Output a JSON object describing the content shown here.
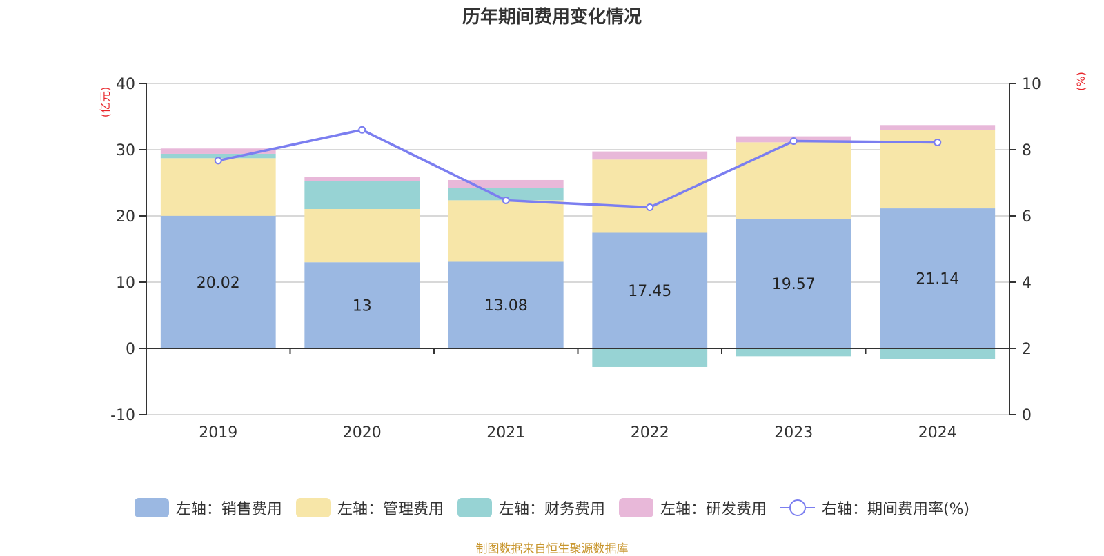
{
  "title": "历年期间费用变化情况",
  "source": "制图数据来自恒生聚源数据库",
  "chart_data": {
    "type": "bar",
    "stacked": true,
    "title": "历年期间费用变化情况",
    "categories": [
      "2019",
      "2020",
      "2021",
      "2022",
      "2023",
      "2024"
    ],
    "left_axis": {
      "label": "(亿元)",
      "ylim": [
        -10,
        40
      ],
      "ticks": [
        40,
        30,
        20,
        10,
        0,
        -10
      ]
    },
    "right_axis": {
      "label": "(%)",
      "ylim": [
        0,
        10
      ],
      "ticks": [
        10,
        8,
        6,
        4,
        2,
        0
      ]
    },
    "series": [
      {
        "name": "左轴：销售费用",
        "color": "#9bb8e2",
        "axis": "left",
        "values": [
          20.02,
          13.0,
          13.08,
          17.45,
          19.57,
          21.14
        ],
        "labels": [
          "20.02",
          "13",
          "13.08",
          "17.45",
          "19.57",
          "21.14"
        ]
      },
      {
        "name": "左轴：管理费用",
        "color": "#f7e6a8",
        "axis": "left",
        "values": [
          8.7,
          8.04,
          9.28,
          11.06,
          11.54,
          11.88
        ]
      },
      {
        "name": "左轴：财务费用",
        "color": "#97d3d4",
        "axis": "left",
        "values": [
          0.66,
          4.27,
          1.81,
          -2.81,
          -1.18,
          -1.59
        ]
      },
      {
        "name": "左轴：研发费用",
        "color": "#e8b8d9",
        "axis": "left",
        "values": [
          0.8,
          0.59,
          1.25,
          1.22,
          0.91,
          0.7
        ]
      },
      {
        "name": "右轴：期间费用率(%)",
        "color": "#7b7ef0",
        "axis": "right",
        "type": "line",
        "values": [
          7.67,
          8.6,
          6.47,
          6.26,
          8.26,
          8.22
        ]
      }
    ],
    "grid": true,
    "legend": "bottom"
  }
}
